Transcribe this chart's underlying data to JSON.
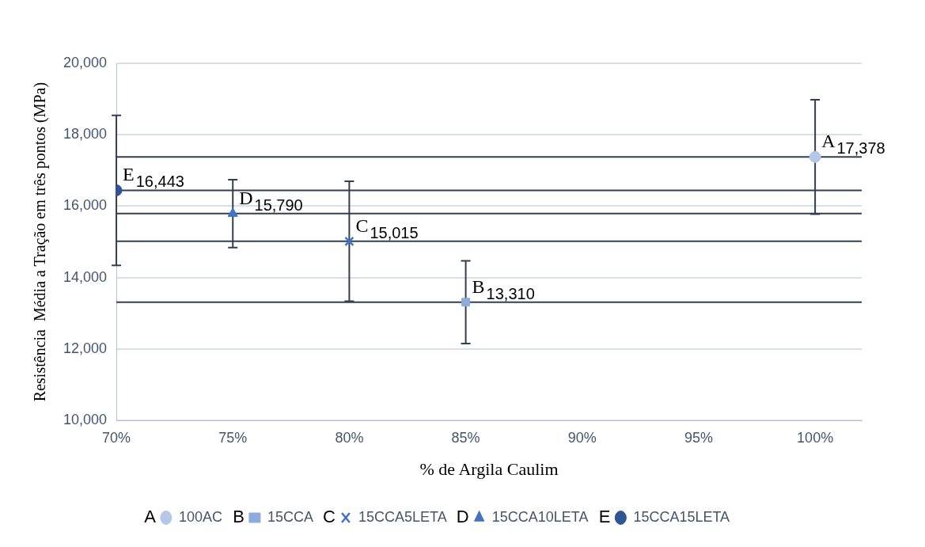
{
  "chart_data": {
    "type": "scatter",
    "xlabel": "% de Argila Caulim",
    "ylabel": "Resistência  Média a Tração em três pontos (MPa)",
    "xlim": [
      70,
      102
    ],
    "xticks": [
      {
        "value": 70,
        "label": "70%"
      },
      {
        "value": 75,
        "label": "75%"
      },
      {
        "value": 80,
        "label": "80%"
      },
      {
        "value": 85,
        "label": "85%"
      },
      {
        "value": 90,
        "label": "90%"
      },
      {
        "value": 95,
        "label": "95%"
      },
      {
        "value": 100,
        "label": "100%"
      }
    ],
    "ylim": [
      10000,
      20000
    ],
    "yticks": [
      {
        "value": 10000,
        "label": "10,000"
      },
      {
        "value": 12000,
        "label": "12,000"
      },
      {
        "value": 14000,
        "label": "14,000"
      },
      {
        "value": 16000,
        "label": "16,000"
      },
      {
        "value": 18000,
        "label": "18,000"
      },
      {
        "value": 20000,
        "label": "20,000"
      }
    ],
    "grid": "y",
    "legend": "bottom",
    "series": [
      {
        "name": "100AC",
        "color": "#b4c7e7",
        "marker": "circle",
        "x": [
          100
        ],
        "values": [
          17378
        ],
        "errors": [
          1600
        ],
        "value_labels": [
          "17,378"
        ]
      },
      {
        "name": "15CCA",
        "color": "#8faadc",
        "marker": "square",
        "x": [
          85
        ],
        "values": [
          13310
        ],
        "errors": [
          1160
        ],
        "value_labels": [
          "13,310"
        ]
      },
      {
        "name": "15CCA5LETA",
        "color": "#4472c4",
        "marker": "cross",
        "x": [
          80
        ],
        "values": [
          15015
        ],
        "errors": [
          1680
        ],
        "value_labels": [
          "15,015"
        ]
      },
      {
        "name": "15CCA10LETA",
        "color": "#4472c4",
        "marker": "triangle",
        "x": [
          75
        ],
        "values": [
          15790
        ],
        "errors": [
          950
        ],
        "value_labels": [
          "15,790"
        ]
      },
      {
        "name": "15CCA15LETA",
        "color": "#2f5597",
        "marker": "circle",
        "x": [
          70
        ],
        "values": [
          16443
        ],
        "errors": [
          2100
        ],
        "value_labels": [
          "16,443"
        ]
      }
    ],
    "ref_lines": [
      {
        "axis": "y",
        "value": 17378,
        "color": "#333f50"
      },
      {
        "axis": "y",
        "value": 13310,
        "color": "#333f50"
      },
      {
        "axis": "y",
        "value": 15015,
        "color": "#333f50"
      },
      {
        "axis": "y",
        "value": 15790,
        "color": "#333f50"
      },
      {
        "axis": "y",
        "value": 16443,
        "color": "#333f50"
      }
    ],
    "annotations": [
      {
        "text": "A",
        "x": 100,
        "y": 17378
      },
      {
        "text": "B",
        "x": 85,
        "y": 13310
      },
      {
        "text": "C",
        "x": 80,
        "y": 15015
      },
      {
        "text": "D",
        "x": 75,
        "y": 15790
      },
      {
        "text": "E",
        "x": 70,
        "y": 16443
      }
    ]
  }
}
